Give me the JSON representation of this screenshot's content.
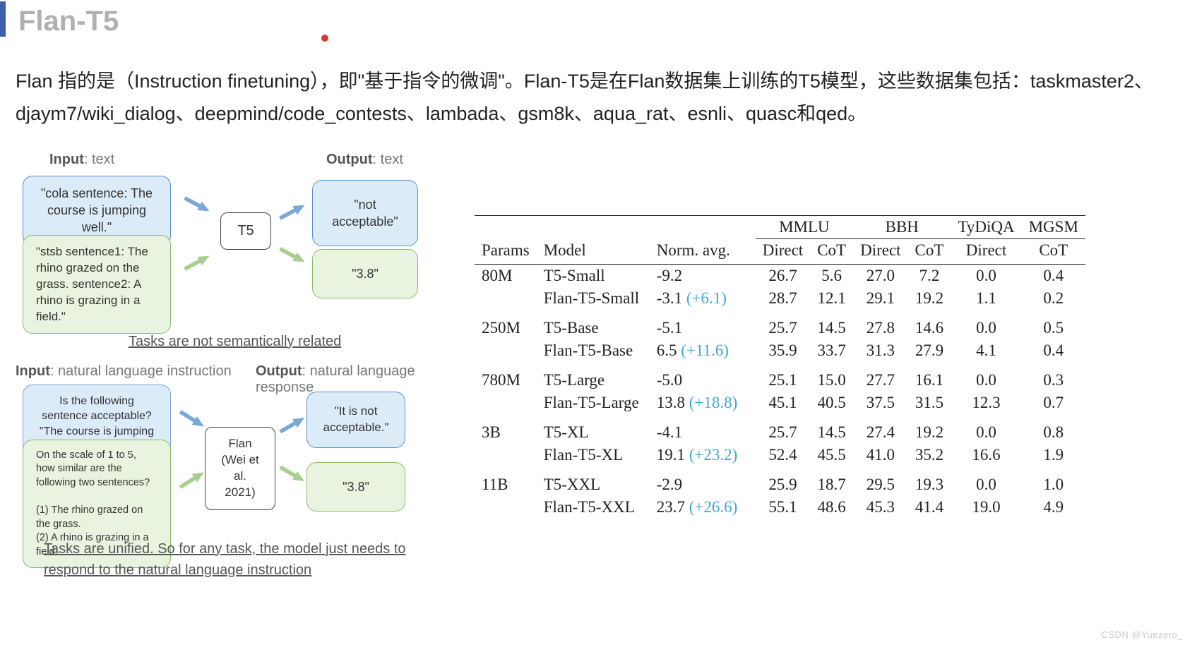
{
  "title": "Flan-T5",
  "description": "Flan 指的是（Instruction finetuning），即\"基于指令的微调\"。Flan-T5是在Flan数据集上训练的T5模型，这些数据集包括：taskmaster2、djaym7/wiki_dialog、deepmind/code_contests、lambada、gsm8k、aqua_rat、esnli、quasc和qed。",
  "diagram1": {
    "input_label_bold": "Input",
    "input_label_rest": ": text",
    "output_label_bold": "Output",
    "output_label_rest": ": text",
    "box1": "\"cola sentence: The course is jumping well.\"",
    "box2": "\"stsb sentence1: The rhino grazed on the grass. sentence2: A rhino is grazing in a field.\"",
    "center": "T5",
    "out1": "\"not acceptable\"",
    "out2": "\"3.8\"",
    "caption": "Tasks are not semantically related",
    "colors": {
      "blue_bg": "#dcebf8",
      "blue_border": "#5c8ecb",
      "green_bg": "#e8f4e0",
      "green_border": "#8abb6c",
      "arrow_blue": "#7aa8d8",
      "arrow_green": "#a8cf90"
    }
  },
  "diagram2": {
    "input_label_bold": "Input",
    "input_label_rest": ": natural language instruction",
    "output_label_bold": "Output",
    "output_label_rest": ": natural language response",
    "box1": "Is the following sentence acceptable?\n\"The course is jumping well.\"",
    "box2": "On the scale of 1 to 5, how similar are the following two sentences?\n\n(1) The rhino grazed on the grass.\n(2) A rhino is grazing in a field.",
    "center": "Flan (Wei et al. 2021)",
    "out1": "\"It is not acceptable.\"",
    "out2": "\"3.8\"",
    "caption": "Tasks are unified. So for any task, the model just needs to respond to the natural language instruction"
  },
  "table": {
    "group_headers": [
      "MMLU",
      "BBH",
      "TyDiQA",
      "MGSM"
    ],
    "sub_headers": [
      "Params",
      "Model",
      "Norm. avg.",
      "Direct",
      "CoT",
      "Direct",
      "CoT",
      "Direct",
      "CoT"
    ],
    "groups": [
      {
        "params": "80M",
        "rows": [
          {
            "model": "T5-Small",
            "norm": "-9.2",
            "delta": "",
            "mmlu_d": "26.7",
            "mmlu_c": "5.6",
            "bbh_d": "27.0",
            "bbh_c": "7.2",
            "ty": "0.0",
            "mg": "0.4"
          },
          {
            "model": "Flan-T5-Small",
            "norm": "-3.1",
            "delta": "(+6.1)",
            "mmlu_d": "28.7",
            "mmlu_c": "12.1",
            "bbh_d": "29.1",
            "bbh_c": "19.2",
            "ty": "1.1",
            "mg": "0.2"
          }
        ]
      },
      {
        "params": "250M",
        "rows": [
          {
            "model": "T5-Base",
            "norm": "-5.1",
            "delta": "",
            "mmlu_d": "25.7",
            "mmlu_c": "14.5",
            "bbh_d": "27.8",
            "bbh_c": "14.6",
            "ty": "0.0",
            "mg": "0.5"
          },
          {
            "model": "Flan-T5-Base",
            "norm": "6.5",
            "delta": "(+11.6)",
            "mmlu_d": "35.9",
            "mmlu_c": "33.7",
            "bbh_d": "31.3",
            "bbh_c": "27.9",
            "ty": "4.1",
            "mg": "0.4"
          }
        ]
      },
      {
        "params": "780M",
        "rows": [
          {
            "model": "T5-Large",
            "norm": "-5.0",
            "delta": "",
            "mmlu_d": "25.1",
            "mmlu_c": "15.0",
            "bbh_d": "27.7",
            "bbh_c": "16.1",
            "ty": "0.0",
            "mg": "0.3"
          },
          {
            "model": "Flan-T5-Large",
            "norm": "13.8",
            "delta": "(+18.8)",
            "mmlu_d": "45.1",
            "mmlu_c": "40.5",
            "bbh_d": "37.5",
            "bbh_c": "31.5",
            "ty": "12.3",
            "mg": "0.7"
          }
        ]
      },
      {
        "params": "3B",
        "rows": [
          {
            "model": "T5-XL",
            "norm": "-4.1",
            "delta": "",
            "mmlu_d": "25.7",
            "mmlu_c": "14.5",
            "bbh_d": "27.4",
            "bbh_c": "19.2",
            "ty": "0.0",
            "mg": "0.8"
          },
          {
            "model": "Flan-T5-XL",
            "norm": "19.1",
            "delta": "(+23.2)",
            "mmlu_d": "52.4",
            "mmlu_c": "45.5",
            "bbh_d": "41.0",
            "bbh_c": "35.2",
            "ty": "16.6",
            "mg": "1.9"
          }
        ]
      },
      {
        "params": "11B",
        "rows": [
          {
            "model": "T5-XXL",
            "norm": "-2.9",
            "delta": "",
            "mmlu_d": "25.9",
            "mmlu_c": "18.7",
            "bbh_d": "29.5",
            "bbh_c": "19.3",
            "ty": "0.0",
            "mg": "1.0"
          },
          {
            "model": "Flan-T5-XXL",
            "norm": "23.7",
            "delta": "(+26.6)",
            "mmlu_d": "55.1",
            "mmlu_c": "48.6",
            "bbh_d": "45.3",
            "bbh_c": "41.4",
            "ty": "19.0",
            "mg": "4.9"
          }
        ]
      }
    ]
  },
  "watermark": "CSDN @Yuezero_"
}
